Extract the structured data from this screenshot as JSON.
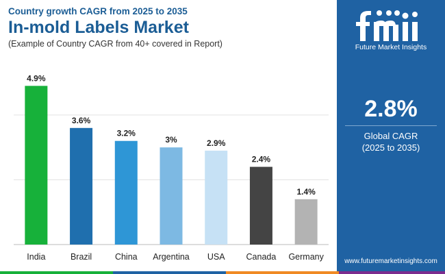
{
  "header": {
    "subtitle": "Country growth CAGR from 2025 to 2035",
    "title": "In-mold Labels Market",
    "note": "(Example of Country CAGR from 40+ covered in Report)"
  },
  "chart_data": {
    "type": "bar",
    "categories": [
      "India",
      "Brazil",
      "China",
      "Argentina",
      "USA",
      "Canada",
      "Germany"
    ],
    "values": [
      4.9,
      3.6,
      3.2,
      3.0,
      2.9,
      2.4,
      1.4
    ],
    "value_labels": [
      "4.9%",
      "3.6%",
      "3.2%",
      "3%",
      "2.9%",
      "2.4%",
      "1.4%"
    ],
    "colors": [
      "#17b13a",
      "#1f6fae",
      "#2e96d6",
      "#7db9e3",
      "#c6e1f5",
      "#444444",
      "#b3b3b3"
    ],
    "ylim": [
      0,
      5.5
    ],
    "gridlines": [
      0,
      2,
      4
    ],
    "grid": true,
    "xlabel": "",
    "ylabel": ""
  },
  "sidebar": {
    "logo_text": "Future Market Insights",
    "global_value": "2.8%",
    "global_label": "Global CAGR",
    "global_period": "(2025 to 2035)",
    "website": "www.futuremarketinsights.com"
  },
  "theme": {
    "accent": "#1f62a3",
    "title_color": "#1b5d95",
    "strip_colors": [
      "#17b13a",
      "#1f62a3",
      "#f08a24",
      "#7b2c8f"
    ]
  }
}
